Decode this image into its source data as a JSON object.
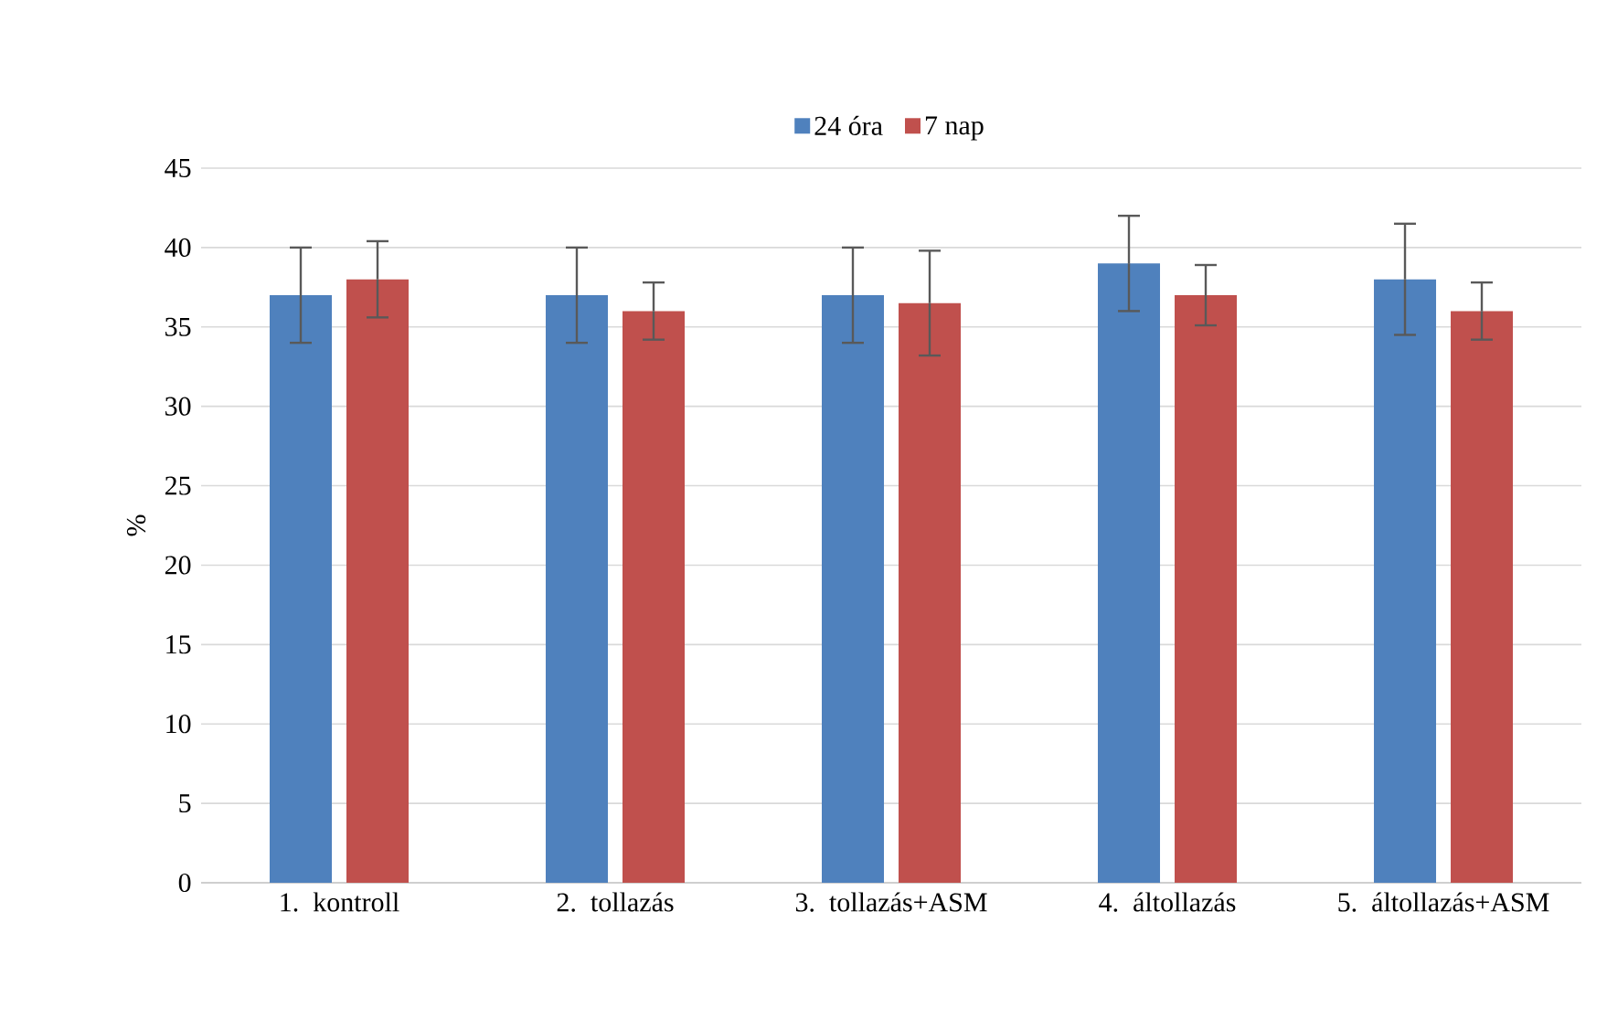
{
  "chart_data": {
    "type": "bar",
    "ylabel": "%",
    "categories": [
      "1. kontroll",
      "2. tollazás",
      "3. tollazás+ASM",
      "4. áltollazás",
      "5. áltollazás+ASM"
    ],
    "series": [
      {
        "name": "24 óra",
        "color": "#4f81bd",
        "values": [
          37,
          37,
          37,
          39,
          38
        ],
        "errors": [
          3,
          3,
          3,
          3,
          3.5
        ]
      },
      {
        "name": "7 nap",
        "color": "#c0504d",
        "values": [
          38,
          36,
          36.5,
          37,
          36
        ],
        "errors": [
          2.4,
          1.8,
          3.3,
          1.9,
          1.8
        ]
      }
    ],
    "ylim": [
      0,
      45
    ],
    "yticks": [
      0,
      5,
      10,
      15,
      20,
      25,
      30,
      35,
      40,
      45
    ],
    "grid": "y",
    "legend": "top"
  }
}
